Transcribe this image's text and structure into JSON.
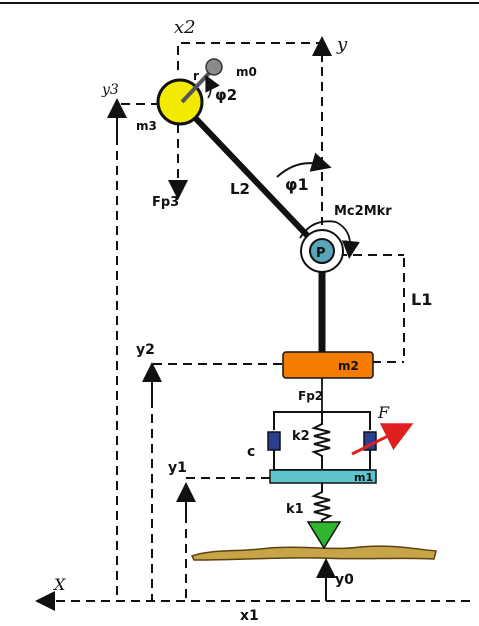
{
  "labels": {
    "x2": "x2",
    "y_top": "y",
    "m0": "m0",
    "r": "r",
    "phi2": "φ2",
    "y3": "y3",
    "m3": "m3",
    "phi1": "φ1",
    "l2": "L2",
    "fp3": "Fp3",
    "moments": "Mc2Mkr",
    "pivot": "P",
    "l1": "L1",
    "y2": "y2",
    "m2": "m2",
    "fp2": "Fp2",
    "k2": "k2",
    "force": "F",
    "c": "c",
    "y1": "y1",
    "m1": "m1",
    "k1": "k1",
    "x_axis": "X",
    "x1": "x1",
    "y0": "y0"
  },
  "colors": {
    "mass_m3": "#f2ea00",
    "mass_m2": "#f57c00",
    "mass_m1": "#5ec3cc",
    "pivot": "#5aa6b8",
    "wheel": "#2fb52f",
    "ground": "#c8a448",
    "force_arrow": "#e02020",
    "damper": "#2a3f8f"
  }
}
